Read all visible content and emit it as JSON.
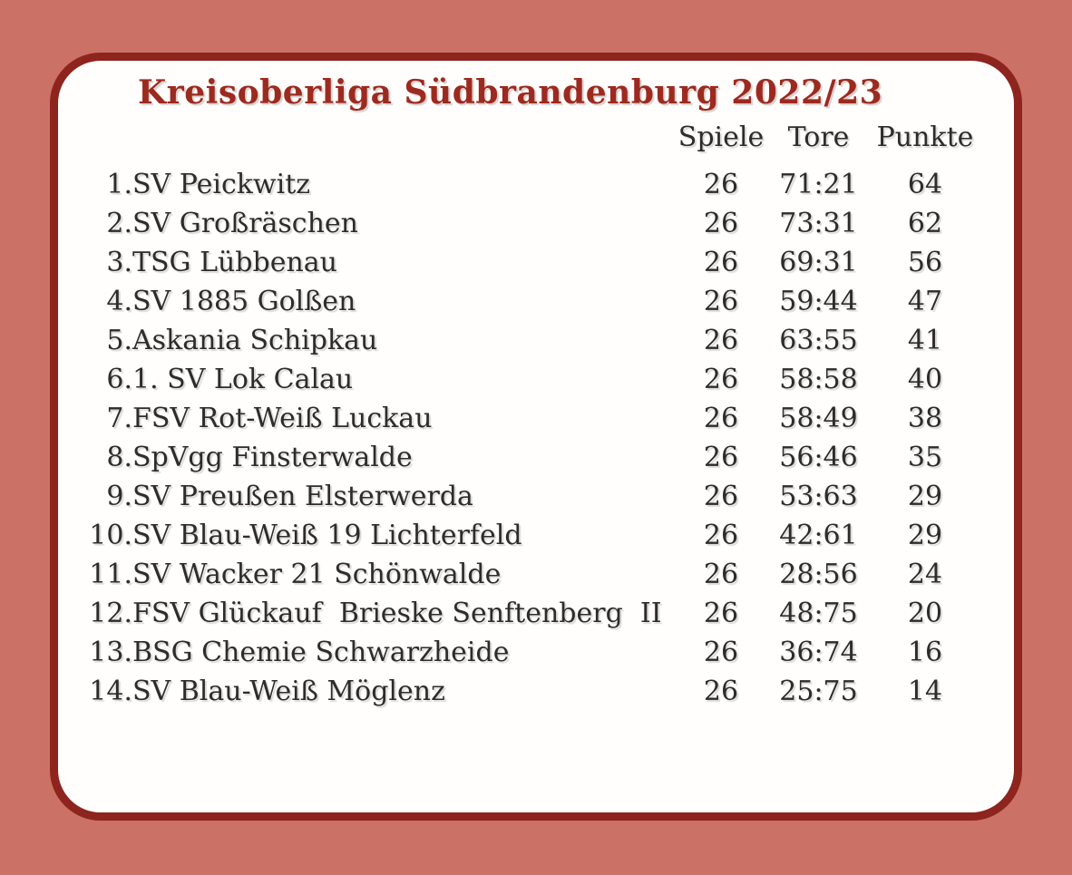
{
  "title": "Kreisoberliga Südbrandenburg 2022/23",
  "table": {
    "headers": {
      "spiele": "Spiele",
      "tore": "Tore",
      "punkte": "Punkte"
    },
    "rows": [
      {
        "rank": "1.",
        "team": "SV Peickwitz",
        "spiele": "26",
        "tore": "71:21",
        "punkte": "64"
      },
      {
        "rank": "2.",
        "team": "SV Großräschen",
        "spiele": "26",
        "tore": "73:31",
        "punkte": "62"
      },
      {
        "rank": "3.",
        "team": "TSG Lübbenau",
        "spiele": "26",
        "tore": "69:31",
        "punkte": "56"
      },
      {
        "rank": "4.",
        "team": "SV 1885 Golßen",
        "spiele": "26",
        "tore": "59:44",
        "punkte": "47"
      },
      {
        "rank": "5.",
        "team": "Askania Schipkau",
        "spiele": "26",
        "tore": "63:55",
        "punkte": "41"
      },
      {
        "rank": "6.",
        "team": "1. SV Lok Calau",
        "spiele": "26",
        "tore": "58:58",
        "punkte": "40"
      },
      {
        "rank": "7.",
        "team": "FSV Rot-Weiß Luckau",
        "spiele": "26",
        "tore": "58:49",
        "punkte": "38"
      },
      {
        "rank": "8.",
        "team": "SpVgg Finsterwalde",
        "spiele": "26",
        "tore": "56:46",
        "punkte": "35"
      },
      {
        "rank": "9.",
        "team": "SV Preußen Elsterwerda",
        "spiele": "26",
        "tore": "53:63",
        "punkte": "29"
      },
      {
        "rank": "10.",
        "team": "SV Blau-Weiß 19 Lichterfeld",
        "spiele": "26",
        "tore": "42:61",
        "punkte": "29"
      },
      {
        "rank": "11.",
        "team": "SV Wacker 21 Schönwalde",
        "spiele": "26",
        "tore": "28:56",
        "punkte": "24"
      },
      {
        "rank": "12.",
        "team": "FSV Glückauf  Brieske Senftenberg  II",
        "spiele": "26",
        "tore": "48:75",
        "punkte": "20"
      },
      {
        "rank": "13.",
        "team": "BSG Chemie Schwarzheide",
        "spiele": "26",
        "tore": "36:74",
        "punkte": "16"
      },
      {
        "rank": "14.",
        "team": "SV Blau-Weiß Möglenz",
        "spiele": "26",
        "tore": "25:75",
        "punkte": "14"
      }
    ]
  },
  "colors": {
    "background": "#cb7165",
    "card_bg": "#fffefd",
    "card_border": "#8d241d",
    "title": "#9c2a1f",
    "text": "#2d2c2a"
  }
}
